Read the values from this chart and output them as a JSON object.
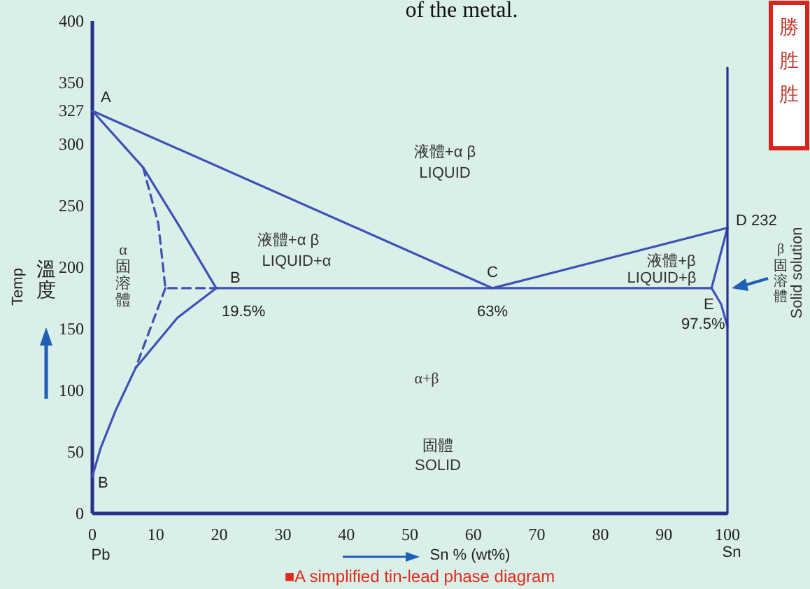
{
  "chart_data": {
    "type": "line",
    "xlabel": "Sn % (wt%)",
    "ylabel": "Temp",
    "xlim": [
      0,
      100
    ],
    "ylim": [
      0,
      400
    ],
    "xticks": [
      0,
      10,
      20,
      30,
      40,
      50,
      60,
      70,
      80,
      90,
      100
    ],
    "yticks": [
      0,
      50,
      100,
      150,
      200,
      250,
      300,
      327,
      350,
      400
    ],
    "grid": false,
    "marker": "none",
    "series": [
      {
        "color": "#3f51b5",
        "x": [
          0,
          63,
          100
        ],
        "values": [
          327,
          183,
          232
        ]
      },
      {
        "color": "#3f51b5",
        "x": [
          0,
          8,
          13.5,
          19.5
        ],
        "values": [
          327,
          281,
          235,
          183
        ]
      },
      {
        "color": "#3f51b5",
        "x": [
          19.5,
          13.4,
          6.8,
          3.7,
          1.3,
          0
        ],
        "values": [
          183,
          159,
          118,
          84,
          53,
          30
        ]
      },
      {
        "color": "#3f51b5",
        "x": [
          19.5,
          97.5
        ],
        "values": [
          183,
          183
        ]
      },
      {
        "color": "#3f51b5",
        "x": [
          100,
          97.5
        ],
        "values": [
          232,
          183
        ]
      },
      {
        "color": "#3f51b5",
        "x": [
          97.5,
          99,
          100
        ],
        "values": [
          183,
          170,
          152
        ]
      },
      {
        "color": "#3f51b5",
        "line_style": "dashed",
        "x": [
          8,
          10.4,
          11.5,
          19.5
        ],
        "values": [
          281,
          235,
          183,
          183
        ]
      },
      {
        "color": "#3f51b5",
        "line_style": "dashed",
        "x": [
          11.5,
          6.8
        ],
        "values": [
          183,
          118
        ]
      },
      {
        "color": "#2a2f8a",
        "x": [
          100,
          100
        ],
        "values": [
          0,
          362
        ]
      }
    ],
    "annotations": [
      "of the metal.",
      {
        "text": "A",
        "x": 0,
        "y": 327
      },
      {
        "text": "B",
        "x": 19.5,
        "y": 183
      },
      {
        "text": "19.5%",
        "x": 19.5,
        "y": 183
      },
      {
        "text": "C",
        "x": 63,
        "y": 183
      },
      {
        "text": "63%",
        "x": 63,
        "y": 183
      },
      {
        "text": "D 232",
        "x": 100,
        "y": 232
      },
      {
        "text": "E",
        "x": 97.5,
        "y": 183
      },
      {
        "text": "97.5%",
        "x": 97.5,
        "y": 183
      },
      {
        "text": "B",
        "x": 0,
        "y": 30
      },
      "液體+α β",
      "LIQUID",
      "液體+α β",
      "LIQUID+α",
      "液體+β",
      "LIQUID+β",
      "α",
      "固溶體",
      "α+β",
      "固體",
      "SOLID",
      "β",
      "固溶體",
      "Solid solution",
      "Pb",
      "Sn",
      "■A simplified tin-lead phase diagram",
      "溫度",
      "勝",
      "胜",
      "胜"
    ]
  }
}
